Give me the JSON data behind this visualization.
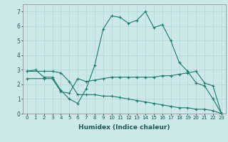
{
  "xlabel": "Humidex (Indice chaleur)",
  "bg_color": "#cce8e8",
  "grid_color": "#b0d4d4",
  "line_color": "#1a7a6e",
  "xlim": [
    -0.5,
    23.5
  ],
  "ylim": [
    0,
    7.5
  ],
  "xticks": [
    0,
    1,
    2,
    3,
    4,
    5,
    6,
    7,
    8,
    9,
    10,
    11,
    12,
    13,
    14,
    15,
    16,
    17,
    18,
    19,
    20,
    21,
    22,
    23
  ],
  "yticks": [
    0,
    1,
    2,
    3,
    4,
    5,
    6,
    7
  ],
  "line1_x": [
    0,
    1,
    2,
    3,
    4,
    5,
    6,
    7,
    8,
    9,
    10,
    11,
    12,
    13,
    14,
    15,
    16,
    17,
    18,
    19,
    20,
    21,
    22,
    23
  ],
  "line1_y": [
    2.9,
    3.0,
    2.5,
    2.5,
    1.6,
    1.0,
    0.7,
    1.7,
    3.3,
    5.8,
    6.7,
    6.6,
    6.2,
    6.4,
    7.0,
    5.9,
    6.1,
    5.0,
    3.5,
    2.9,
    2.1,
    1.9,
    1.0,
    0.0
  ],
  "line2_x": [
    0,
    2,
    3,
    4,
    5,
    6,
    7,
    8,
    9,
    10,
    11,
    12,
    13,
    14,
    15,
    16,
    17,
    18,
    19,
    20,
    21,
    22,
    23
  ],
  "line2_y": [
    2.4,
    2.4,
    2.4,
    1.5,
    1.4,
    2.4,
    2.2,
    2.3,
    2.4,
    2.5,
    2.5,
    2.5,
    2.5,
    2.5,
    2.5,
    2.6,
    2.6,
    2.7,
    2.8,
    2.9,
    2.1,
    1.9,
    0.0
  ],
  "line3_x": [
    0,
    2,
    3,
    4,
    5,
    6,
    7,
    8,
    9,
    10,
    11,
    12,
    13,
    14,
    15,
    16,
    17,
    18,
    19,
    20,
    21,
    22,
    23
  ],
  "line3_y": [
    2.9,
    2.9,
    2.9,
    2.8,
    2.2,
    1.3,
    1.3,
    1.3,
    1.2,
    1.2,
    1.1,
    1.0,
    0.9,
    0.8,
    0.7,
    0.6,
    0.5,
    0.4,
    0.4,
    0.3,
    0.3,
    0.2,
    0.0
  ],
  "tick_fontsize": 5.0,
  "xlabel_fontsize": 6.5,
  "marker_size": 3.5,
  "linewidth": 0.8
}
